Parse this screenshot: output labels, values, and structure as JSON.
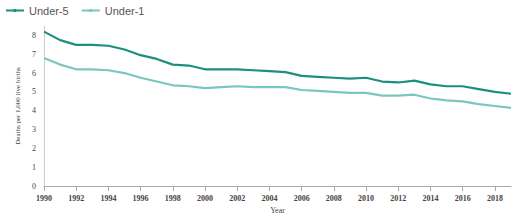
{
  "chart_data": {
    "type": "line",
    "x_label": "Year",
    "y_label": "Deaths per 1,000 live births",
    "x": [
      1990,
      1991,
      1992,
      1993,
      1994,
      1995,
      1996,
      1997,
      1998,
      1999,
      2000,
      2001,
      2002,
      2003,
      2004,
      2005,
      2006,
      2007,
      2008,
      2009,
      2010,
      2011,
      2012,
      2013,
      2014,
      2015,
      2016,
      2017,
      2018,
      2019
    ],
    "series": [
      {
        "name": "Under-5",
        "color": "#1b9080",
        "values": [
          8.2,
          7.75,
          7.5,
          7.5,
          7.45,
          7.25,
          6.95,
          6.75,
          6.45,
          6.4,
          6.2,
          6.2,
          6.2,
          6.15,
          6.1,
          6.05,
          5.85,
          5.8,
          5.75,
          5.7,
          5.75,
          5.55,
          5.5,
          5.6,
          5.4,
          5.3,
          5.3,
          5.15,
          5.0,
          4.9
        ]
      },
      {
        "name": "Under-1",
        "color": "#79c7bd",
        "values": [
          6.8,
          6.45,
          6.2,
          6.2,
          6.15,
          6.0,
          5.75,
          5.55,
          5.35,
          5.3,
          5.2,
          5.25,
          5.3,
          5.25,
          5.25,
          5.25,
          5.1,
          5.05,
          5.0,
          4.95,
          4.95,
          4.8,
          4.8,
          4.85,
          4.65,
          4.55,
          4.5,
          4.35,
          4.25,
          4.15
        ]
      }
    ],
    "xlim": [
      1990,
      2019
    ],
    "xticks": [
      1990,
      1992,
      1994,
      1996,
      1998,
      2000,
      2002,
      2004,
      2006,
      2008,
      2010,
      2012,
      2014,
      2016,
      2018
    ],
    "ylim": [
      0,
      8.5
    ],
    "yticks": [
      0,
      1,
      2,
      3,
      4,
      5,
      6,
      7,
      8
    ],
    "grid": false,
    "legend": "top-left",
    "marker": "none",
    "line_style": "solid"
  }
}
